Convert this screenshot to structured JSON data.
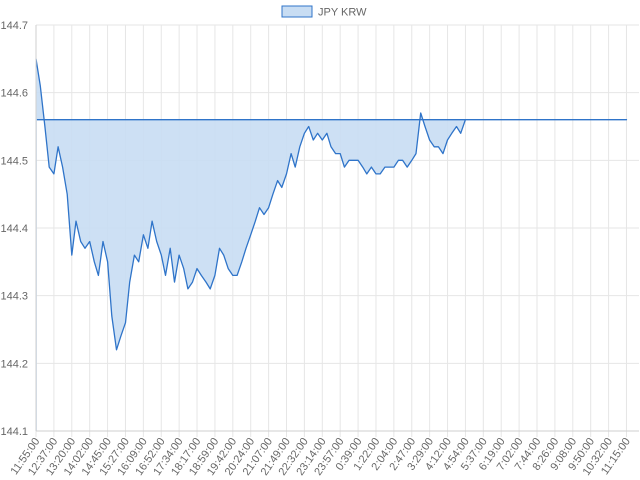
{
  "chart_data": {
    "type": "area",
    "title": "",
    "xlabel": "",
    "ylabel": "",
    "legend": {
      "position": "top-center",
      "entries": [
        "JPY KRW"
      ]
    },
    "grid": true,
    "colors": {
      "line": "#2f74c9",
      "fill": "#c8ddf3",
      "grid": "#e6e6e6",
      "text": "#666666"
    },
    "ylim": [
      144.1,
      144.7
    ],
    "y_ticks": [
      "144.7",
      "144.6",
      "144.5",
      "144.4",
      "144.3",
      "144.2",
      "144.1"
    ],
    "x_ticks": [
      "11:55:00",
      "12:37:00",
      "13:20:00",
      "14:02:00",
      "14:45:00",
      "15:27:00",
      "16:09:00",
      "16:52:00",
      "17:34:00",
      "18:17:00",
      "18:59:00",
      "19:42:00",
      "20:24:00",
      "21:07:00",
      "21:49:00",
      "22:32:00",
      "23:14:00",
      "23:57:00",
      "0:39:00",
      "1:22:00",
      "2:04:00",
      "2:47:00",
      "3:29:00",
      "4:12:00",
      "4:54:00",
      "5:37:00",
      "6:19:00",
      "7:02:00",
      "7:44:00",
      "8:26:00",
      "9:08:00",
      "9:50:00",
      "10:32:00",
      "11:15:00"
    ],
    "series": [
      {
        "name": "JPY KRW",
        "x": [
          "11:55:00",
          "12:05:00",
          "12:16:00",
          "12:26:00",
          "12:37:00",
          "12:47:00",
          "12:58:00",
          "13:09:00",
          "13:20:00",
          "13:30:00",
          "13:41:00",
          "13:51:00",
          "14:02:00",
          "14:13:00",
          "14:23:00",
          "14:34:00",
          "14:45:00",
          "14:55:00",
          "15:06:00",
          "15:16:00",
          "15:27:00",
          "15:37:00",
          "15:48:00",
          "15:58:00",
          "16:09:00",
          "16:20:00",
          "16:30:00",
          "16:41:00",
          "16:52:00",
          "17:02:00",
          "17:13:00",
          "17:23:00",
          "17:34:00",
          "17:45:00",
          "17:55:00",
          "18:06:00",
          "18:17:00",
          "18:27:00",
          "18:38:00",
          "18:48:00",
          "18:59:00",
          "19:10:00",
          "19:20:00",
          "19:31:00",
          "19:42:00",
          "19:52:00",
          "20:03:00",
          "20:13:00",
          "20:24:00",
          "20:35:00",
          "20:45:00",
          "20:56:00",
          "21:07:00",
          "21:17:00",
          "21:28:00",
          "21:38:00",
          "21:49:00",
          "22:00:00",
          "22:10:00",
          "22:21:00",
          "22:32:00",
          "22:42:00",
          "22:53:00",
          "23:03:00",
          "23:14:00",
          "23:25:00",
          "23:35:00",
          "23:46:00",
          "23:57:00",
          "0:07:00",
          "0:18:00",
          "0:28:00",
          "0:39:00",
          "0:50:00",
          "1:00:00",
          "1:11:00",
          "1:22:00",
          "1:32:00",
          "1:43:00",
          "1:53:00",
          "2:04:00",
          "2:15:00",
          "2:25:00",
          "2:36:00",
          "2:47:00",
          "2:57:00",
          "3:08:00",
          "3:18:00",
          "3:29:00",
          "3:40:00",
          "3:50:00",
          "4:01:00",
          "4:12:00",
          "4:22:00",
          "4:33:00",
          "4:43:00",
          "4:54:00",
          "5:04:00",
          "5:15:00",
          "5:26:00",
          "5:37:00",
          "5:47:00",
          "5:58:00",
          "6:08:00",
          "6:19:00",
          "7:02:00",
          "7:44:00",
          "8:26:00",
          "9:08:00",
          "9:50:00",
          "10:32:00",
          "11:15:00",
          "11:57:00"
        ],
        "values": [
          144.65,
          144.61,
          144.55,
          144.49,
          144.48,
          144.52,
          144.49,
          144.45,
          144.36,
          144.41,
          144.38,
          144.37,
          144.38,
          144.35,
          144.33,
          144.38,
          144.35,
          144.27,
          144.22,
          144.24,
          144.26,
          144.32,
          144.36,
          144.35,
          144.39,
          144.37,
          144.41,
          144.38,
          144.36,
          144.33,
          144.37,
          144.32,
          144.36,
          144.34,
          144.31,
          144.32,
          144.34,
          144.33,
          144.32,
          144.31,
          144.33,
          144.37,
          144.36,
          144.34,
          144.33,
          144.33,
          144.35,
          144.37,
          144.39,
          144.41,
          144.43,
          144.42,
          144.43,
          144.45,
          144.47,
          144.46,
          144.48,
          144.51,
          144.49,
          144.52,
          144.54,
          144.55,
          144.53,
          144.54,
          144.53,
          144.54,
          144.52,
          144.51,
          144.51,
          144.49,
          144.5,
          144.5,
          144.5,
          144.49,
          144.48,
          144.49,
          144.48,
          144.48,
          144.49,
          144.49,
          144.49,
          144.5,
          144.5,
          144.49,
          144.5,
          144.51,
          144.57,
          144.55,
          144.53,
          144.52,
          144.52,
          144.51,
          144.53,
          144.54,
          144.55,
          144.54,
          144.56,
          144.56,
          144.56,
          144.56,
          144.56,
          144.56,
          144.56,
          144.56,
          144.56,
          144.56,
          144.56,
          144.56,
          144.56,
          144.56,
          144.56,
          144.56,
          144.56
        ]
      }
    ]
  }
}
